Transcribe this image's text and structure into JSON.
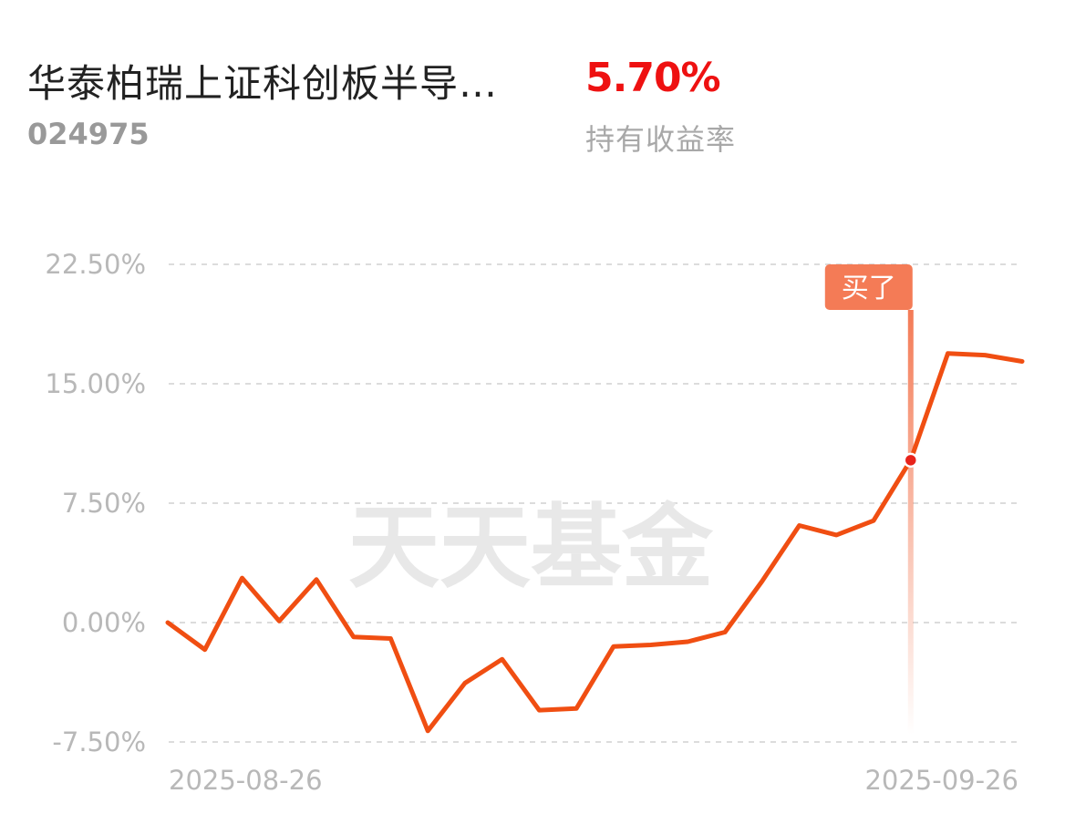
{
  "header": {
    "fund_name": "华泰柏瑞上证科创板半导…",
    "fund_code": "024975",
    "return_value": "5.70%",
    "return_label": "持有收益率"
  },
  "colors": {
    "line": "#f04e12",
    "positive": "#ee1111",
    "badge": "#f47b56",
    "grid": "#dcdcdc",
    "axis_text": "#b8b8b8"
  },
  "watermark": "天天基金",
  "chart_data": {
    "type": "line",
    "ylim": [
      -7.5,
      22.5
    ],
    "y_ticks": [
      "22.50%",
      "15.00%",
      "7.50%",
      "0.00%",
      "-7.50%"
    ],
    "y_tick_values": [
      22.5,
      15.0,
      7.5,
      0.0,
      -7.5
    ],
    "x_start_label": "2025-08-26",
    "x_end_label": "2025-09-26",
    "grid": true,
    "series": [
      {
        "values": [
          0.0,
          -1.7,
          2.8,
          0.1,
          2.7,
          -0.9,
          -1.0,
          -6.8,
          -3.8,
          -2.3,
          -5.5,
          -5.4,
          -1.5,
          -1.4,
          -1.2,
          -0.6,
          2.6,
          6.1,
          5.5,
          6.4,
          10.2,
          16.9,
          16.8,
          16.4
        ]
      }
    ],
    "annotation": {
      "label": "买了",
      "index": 20,
      "value": 10.2
    }
  }
}
